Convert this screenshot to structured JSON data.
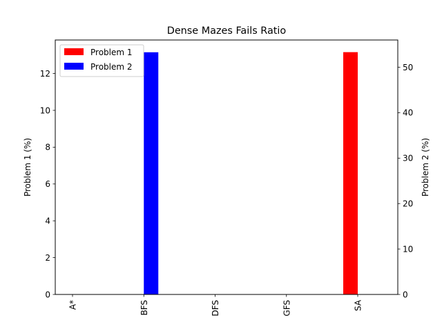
{
  "chart_data": {
    "type": "bar",
    "title": "Dense Mazes Fails Ratio",
    "categories": [
      "A*",
      "BFS",
      "DFS",
      "GFS",
      "SA"
    ],
    "series": [
      {
        "name": "Problem 1",
        "axis": "left",
        "color": "#ff0000",
        "values": [
          0,
          0,
          0,
          0,
          13.16
        ]
      },
      {
        "name": "Problem 2",
        "axis": "right",
        "color": "#0000ff",
        "values": [
          0,
          53.3,
          0,
          0,
          0
        ]
      }
    ],
    "ylabel_left": "Problem 1 (%)",
    "ylabel_right": "Problem 2 (%)",
    "ylim_left": [
      0,
      13.82
    ],
    "ylim_right": [
      0,
      56.0
    ],
    "yticks_left": [
      0,
      2,
      4,
      6,
      8,
      10,
      12
    ],
    "yticks_right": [
      0,
      10,
      20,
      30,
      40,
      50
    ],
    "legend_placement": "upper left",
    "grid": false
  }
}
